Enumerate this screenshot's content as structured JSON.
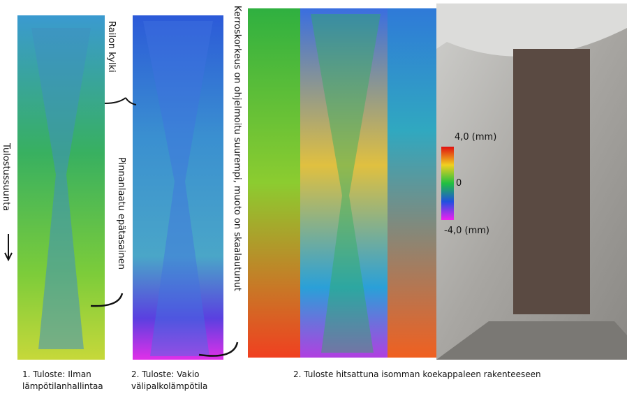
{
  "panels": [
    {
      "caption": [
        "1. Tuloste: Ilman",
        "lämpötilanhallintaa"
      ]
    },
    {
      "caption": [
        "2. Tuloste: Vakio",
        "välipalkolämpötila"
      ]
    },
    {
      "caption": [
        "2. Tuloste hitsattuna isomman koekappaleen rakenteeseen"
      ]
    }
  ],
  "annotations": {
    "side_wall": "Railon kylki",
    "print_direction": "Tulostussuunta",
    "surface_quality": "Pinnanlaatu epätasainen",
    "layer_height": "Kerroskorkeus on ohjelmoitu suurempi, muoto on skaalautunut"
  },
  "colorbar": {
    "max": "4,0 (mm)",
    "mid": "0",
    "min": "-4,0 (mm)"
  }
}
